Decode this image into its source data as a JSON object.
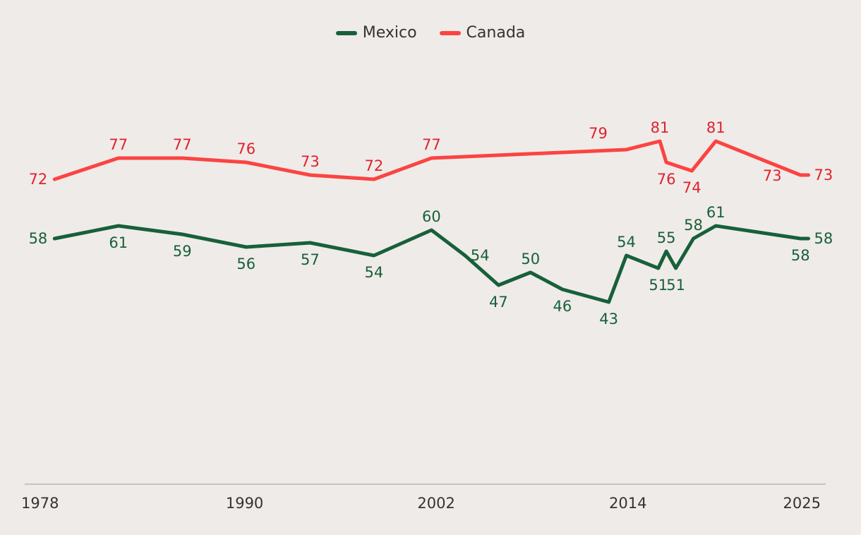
{
  "chart_data": {
    "type": "line",
    "title": "",
    "xlabel": "",
    "ylabel": "",
    "xlim": [
      1978,
      2025.5
    ],
    "ylim": [
      0,
      100
    ],
    "x_ticks": [
      1978,
      1990,
      2002,
      2014,
      2025
    ],
    "x_tick_labels": [
      "1978",
      "1990",
      "2002",
      "2014",
      "2025"
    ],
    "grid": false,
    "legend_position": "top-center",
    "series": [
      {
        "name": "Mexico",
        "color": "#17603a",
        "points": [
          {
            "x": 1978.1,
            "y": 58,
            "label": "58",
            "label_pos": "left"
          },
          {
            "x": 1982.1,
            "y": 61,
            "label": "61",
            "label_pos": "below"
          },
          {
            "x": 1986.1,
            "y": 59,
            "label": "59",
            "label_pos": "below"
          },
          {
            "x": 1990.1,
            "y": 56,
            "label": "56",
            "label_pos": "below"
          },
          {
            "x": 1994.1,
            "y": 57,
            "label": "57",
            "label_pos": "below"
          },
          {
            "x": 1998.1,
            "y": 54,
            "label": "54",
            "label_pos": "below"
          },
          {
            "x": 2001.7,
            "y": 60,
            "label": "60",
            "label_pos": "above"
          },
          {
            "x": 2003.8,
            "y": 54,
            "label": "54",
            "label_pos": "right"
          },
          {
            "x": 2005.9,
            "y": 47,
            "label": "47",
            "label_pos": "below"
          },
          {
            "x": 2007.9,
            "y": 50,
            "label": "50",
            "label_pos": "above"
          },
          {
            "x": 2009.9,
            "y": 46,
            "label": "46",
            "label_pos": "below"
          },
          {
            "x": 2012.8,
            "y": 43,
            "label": "43",
            "label_pos": "below"
          },
          {
            "x": 2013.9,
            "y": 54,
            "label": "54",
            "label_pos": "above"
          },
          {
            "x": 2015.9,
            "y": 51,
            "label": "51",
            "label_pos": "below"
          },
          {
            "x": 2016.4,
            "y": 55,
            "label": "55",
            "label_pos": "above"
          },
          {
            "x": 2017.0,
            "y": 51,
            "label": "51",
            "label_pos": "below"
          },
          {
            "x": 2018.1,
            "y": 58,
            "label": "58",
            "label_pos": "above"
          },
          {
            "x": 2019.5,
            "y": 61,
            "label": "61",
            "label_pos": "above"
          },
          {
            "x": 2024.8,
            "y": 58,
            "label": "58",
            "label_pos": "below"
          },
          {
            "x": 2025.3,
            "y": 58,
            "label": "58",
            "label_pos": "right"
          }
        ]
      },
      {
        "name": "Canada",
        "color": "#fb4442",
        "points": [
          {
            "x": 1978.1,
            "y": 72,
            "label": "72",
            "label_pos": "left"
          },
          {
            "x": 1982.1,
            "y": 77,
            "label": "77",
            "label_pos": "above"
          },
          {
            "x": 1986.1,
            "y": 77,
            "label": "77",
            "label_pos": "above"
          },
          {
            "x": 1990.1,
            "y": 76,
            "label": "76",
            "label_pos": "above"
          },
          {
            "x": 1994.1,
            "y": 73,
            "label": "73",
            "label_pos": "above"
          },
          {
            "x": 1998.1,
            "y": 72,
            "label": "72",
            "label_pos": "above"
          },
          {
            "x": 2001.7,
            "y": 77,
            "label": "77",
            "label_pos": "above"
          },
          {
            "x": 2013.9,
            "y": 79,
            "label": "79",
            "label_pos": "above-left"
          },
          {
            "x": 2016.0,
            "y": 81,
            "label": "81",
            "label_pos": "above"
          },
          {
            "x": 2016.4,
            "y": 76,
            "label": "76",
            "label_pos": "below"
          },
          {
            "x": 2018.0,
            "y": 74,
            "label": "74",
            "label_pos": "below"
          },
          {
            "x": 2019.5,
            "y": 81,
            "label": "81",
            "label_pos": "above"
          },
          {
            "x": 2024.8,
            "y": 73,
            "label": "73",
            "label_pos": "below-left"
          },
          {
            "x": 2025.3,
            "y": 73,
            "label": "73",
            "label_pos": "right"
          }
        ]
      }
    ]
  },
  "legend": {
    "mexico_label": "Mexico",
    "canada_label": "Canada"
  },
  "colors": {
    "mexico": "#17603a",
    "canada": "#fb4442",
    "canada_label_text": "#e0212c",
    "axis": "#c6c3c0",
    "tick_text": "#333333",
    "background": "#efebe8"
  }
}
